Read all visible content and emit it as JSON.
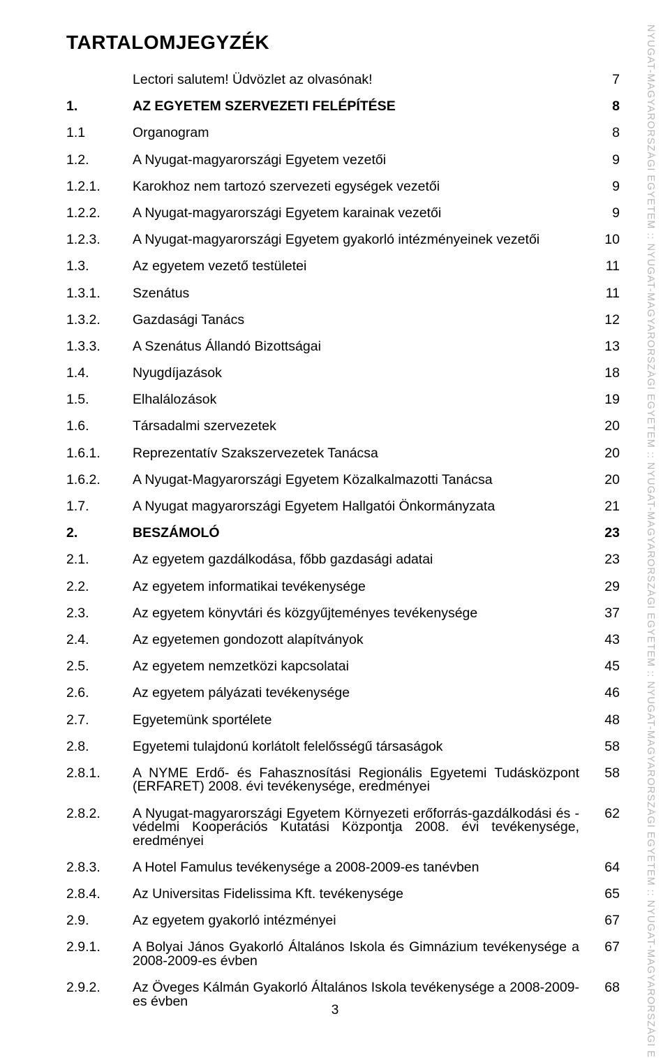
{
  "title": "TARTALOMJEGYZÉK",
  "side_text": "NYUGAT-MAGYARORSZÁGI EGYETEM :: NYUGAT-MAGYARORSZÁGI EGYETEM :: NYUGAT-MAGYARORSZÁGI EGYETEM :: NYUGAT-MAGYARORSZÁGI EGYETEM :: NYUGAT-MAGYARORSZÁGI EGYETEM",
  "footer_page": "3",
  "colors": {
    "text": "#000000",
    "side": "#b6b6b6",
    "bg": "#ffffff"
  },
  "font": {
    "title_size": 28,
    "body_size": 19.5,
    "side_size": 14.5
  },
  "toc": [
    {
      "num": "",
      "title": "Lectori salutem! Üdvözlet az olvasónak!",
      "page": "7",
      "bold": false
    },
    {
      "num": "1.",
      "title": "AZ EGYETEM SZERVEZETI FELÉPÍTÉSE",
      "page": "8",
      "bold": true
    },
    {
      "num": "1.1",
      "title": "Organogram",
      "page": "8",
      "bold": false
    },
    {
      "num": "1.2.",
      "title": "A Nyugat-magyarországi Egyetem vezetői",
      "page": "9",
      "bold": false
    },
    {
      "num": "1.2.1.",
      "title": "Karokhoz nem tartozó szervezeti egységek vezetői",
      "page": "9",
      "bold": false
    },
    {
      "num": "1.2.2.",
      "title": "A Nyugat-magyarországi Egyetem karainak vezetői",
      "page": "9",
      "bold": false
    },
    {
      "num": "1.2.3.",
      "title": "A Nyugat-magyarországi Egyetem gyakorló intézményeinek vezetői",
      "page": "10",
      "bold": false
    },
    {
      "num": "1.3.",
      "title": "Az egyetem vezető testületei",
      "page": "11",
      "bold": false
    },
    {
      "num": "1.3.1.",
      "title": "Szenátus",
      "page": "11",
      "bold": false
    },
    {
      "num": "1.3.2.",
      "title": "Gazdasági Tanács",
      "page": "12",
      "bold": false
    },
    {
      "num": "1.3.3.",
      "title": "A Szenátus Állandó Bizottságai",
      "page": "13",
      "bold": false
    },
    {
      "num": "1.4.",
      "title": "Nyugdíjazások",
      "page": "18",
      "bold": false
    },
    {
      "num": "1.5.",
      "title": "Elhalálozások",
      "page": "19",
      "bold": false
    },
    {
      "num": "1.6.",
      "title": "Társadalmi szervezetek",
      "page": "20",
      "bold": false
    },
    {
      "num": "1.6.1.",
      "title": "Reprezentatív Szakszervezetek Tanácsa",
      "page": "20",
      "bold": false
    },
    {
      "num": "1.6.2.",
      "title": "A Nyugat-Magyarországi Egyetem Közalkalmazotti Tanácsa",
      "page": "20",
      "bold": false
    },
    {
      "num": "1.7.",
      "title": "A Nyugat magyarországi Egyetem Hallgatói Önkormányzata",
      "page": "21",
      "bold": false
    },
    {
      "num": "2.",
      "title": "BESZÁMOLÓ",
      "page": "23",
      "bold": true
    },
    {
      "num": "2.1.",
      "title": "Az egyetem gazdálkodása, főbb gazdasági adatai",
      "page": "23",
      "bold": false
    },
    {
      "num": "2.2.",
      "title": "Az egyetem informatikai tevékenysége",
      "page": "29",
      "bold": false
    },
    {
      "num": "2.3.",
      "title": "Az egyetem könyvtári és közgyűjteményes tevékenysége",
      "page": "37",
      "bold": false
    },
    {
      "num": "2.4.",
      "title": "Az egyetemen gondozott alapítványok",
      "page": "43",
      "bold": false
    },
    {
      "num": "2.5.",
      "title": "Az egyetem nemzetközi kapcsolatai",
      "page": "45",
      "bold": false
    },
    {
      "num": "2.6.",
      "title": "Az egyetem pályázati tevékenysége",
      "page": "46",
      "bold": false
    },
    {
      "num": "2.7.",
      "title": "Egyetemünk sportélete",
      "page": "48",
      "bold": false
    },
    {
      "num": "2.8.",
      "title": "Egyetemi tulajdonú korlátolt felelősségű társaságok",
      "page": "58",
      "bold": false
    },
    {
      "num": "2.8.1.",
      "title": "A NYME Erdő- és Fahasznosítási Regionális Egyetemi Tudásközpont (ERFARET) 2008. évi tevékenysége, eredményei",
      "page": "58",
      "bold": false
    },
    {
      "num": "2.8.2.",
      "title": "A Nyugat-magyarországi Egyetem Környezeti erőforrás-gazdálkodási és -védelmi Kooperációs Kutatási Központja 2008. évi tevékenysége, eredményei",
      "page": "62",
      "bold": false
    },
    {
      "num": "2.8.3.",
      "title": "A Hotel Famulus tevékenysége a 2008-2009-es tanévben",
      "page": "64",
      "bold": false
    },
    {
      "num": "2.8.4.",
      "title": "Az Universitas Fidelissima Kft. tevékenysége",
      "page": "65",
      "bold": false
    },
    {
      "num": "2.9.",
      "title": "Az egyetem gyakorló intézményei",
      "page": "67",
      "bold": false
    },
    {
      "num": "2.9.1.",
      "title": "A Bolyai János Gyakorló Általános Iskola és Gimnázium tevékenysége a 2008-2009-es évben",
      "page": "67",
      "bold": false
    },
    {
      "num": "2.9.2.",
      "title": "Az Öveges Kálmán Gyakorló Általános Iskola tevékenysége a 2008-2009-es évben",
      "page": "68",
      "bold": false
    }
  ]
}
